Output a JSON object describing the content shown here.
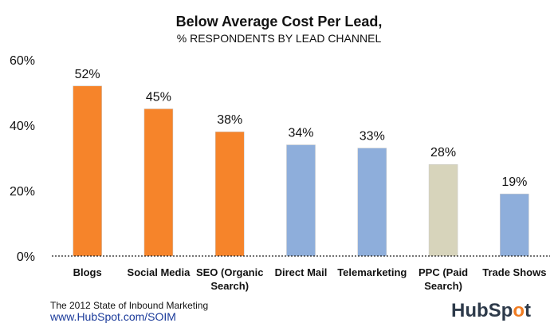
{
  "chart_data": {
    "type": "bar",
    "title": "Below Average Cost Per Lead,",
    "subtitle": "% RESPONDENTS BY LEAD CHANNEL",
    "categories": [
      "Blogs",
      "Social Media",
      "SEO (Organic Search)",
      "Direct Mail",
      "Telemarketing",
      "PPC (Paid Search)",
      "Trade Shows"
    ],
    "category_lines": [
      [
        "Blogs"
      ],
      [
        "Social Media"
      ],
      [
        "SEO (Organic",
        "Search)"
      ],
      [
        "Direct Mail"
      ],
      [
        "Telemarketing"
      ],
      [
        "PPC (Paid",
        "Search)"
      ],
      [
        "Trade Shows"
      ]
    ],
    "values": [
      52,
      45,
      38,
      34,
      33,
      28,
      19
    ],
    "value_labels": [
      "52%",
      "45%",
      "38%",
      "34%",
      "33%",
      "28%",
      "19%"
    ],
    "bar_colors": [
      "#f6842a",
      "#f6842a",
      "#f6842a",
      "#8eaedb",
      "#8eaedb",
      "#d7d4bb",
      "#8eaedb"
    ],
    "yticks": [
      0,
      20,
      40,
      60
    ],
    "ytick_labels": [
      "0%",
      "20%",
      "40%",
      "60%"
    ],
    "ylim": [
      0,
      60
    ],
    "xlabel": "",
    "ylabel": "",
    "grid": false,
    "legend": "none"
  },
  "footer": {
    "source": "The 2012 State of Inbound Marketing",
    "url": "www.HubSpot.com/SOIM"
  },
  "logo": {
    "text_a": "HubSp",
    "text_b": "t"
  }
}
